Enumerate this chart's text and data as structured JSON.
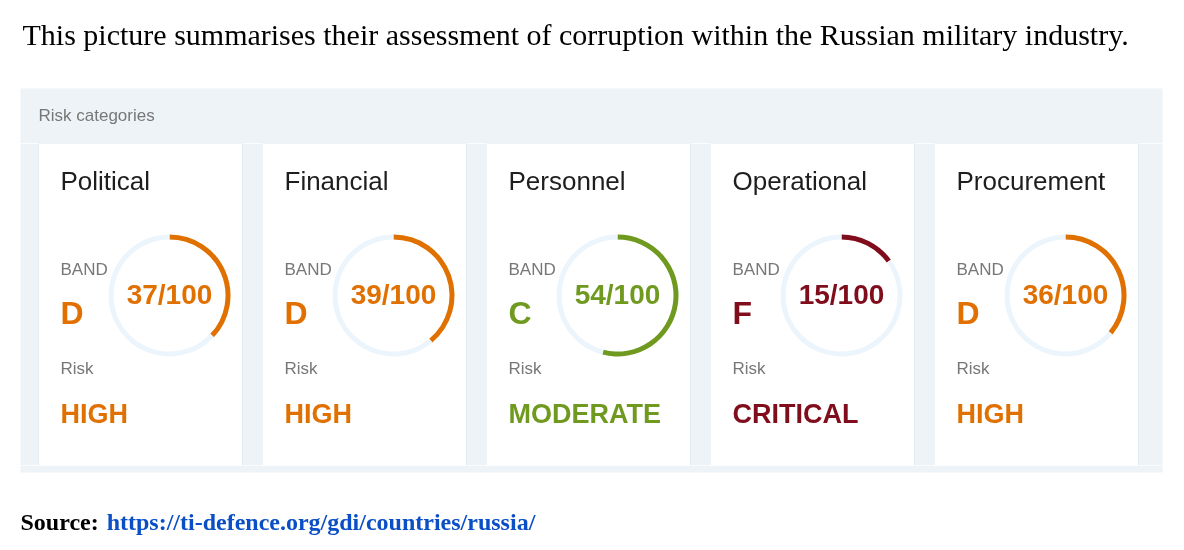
{
  "chart_data": [
    {
      "type": "other",
      "title": "This picture summarises their assessment of corruption within the Russian military industry.",
      "subtitle": "Risk categories"
    },
    {
      "type": "donut",
      "title": "Political",
      "categories": [
        null,
        null
      ],
      "values": [
        37,
        63
      ],
      "colors": [
        "#e07000",
        "#edf5fc"
      ],
      "annotations": [
        "BAND",
        "37/100",
        "D",
        "Risk",
        "HIGH"
      ]
    },
    {
      "type": "donut",
      "title": "Financial",
      "categories": [
        null,
        null
      ],
      "values": [
        39,
        61
      ],
      "colors": [
        "#e07000",
        "#edf5fc"
      ],
      "annotations": [
        "BAND",
        "39/100",
        "D",
        "Risk",
        "HIGH"
      ]
    },
    {
      "type": "donut",
      "title": "Personnel",
      "categories": [
        null,
        null
      ],
      "values": [
        54,
        46
      ],
      "colors": [
        "#6f9a1f",
        "#edf5fc"
      ],
      "annotations": [
        "BAND",
        "54/100",
        "C",
        "Risk",
        "MODERATE"
      ]
    },
    {
      "type": "donut",
      "title": "Operational",
      "categories": [
        null,
        null
      ],
      "values": [
        15,
        85
      ],
      "colors": [
        "#800d1c",
        "#edf5fc"
      ],
      "annotations": [
        "BAND",
        "15/100",
        "F",
        "Risk",
        "CRITICAL"
      ]
    },
    {
      "type": "donut",
      "title": "Procurement",
      "categories": [
        null,
        null
      ],
      "values": [
        36,
        64
      ],
      "colors": [
        "#e07000",
        "#edf5fc"
      ],
      "annotations": [
        "BAND",
        "36/100",
        "D",
        "Risk",
        "HIGH"
      ]
    },
    {
      "type": "other",
      "annotations": [
        "Source:",
        "https://ti-defence.org/gdi/countries/russia/"
      ]
    }
  ]
}
